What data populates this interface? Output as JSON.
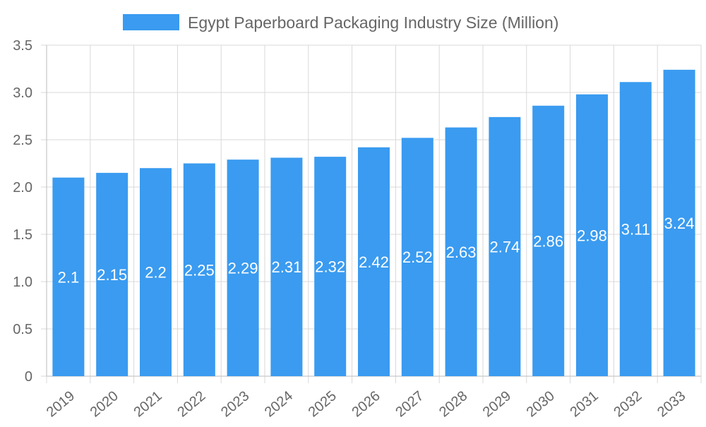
{
  "chart_data": {
    "type": "bar",
    "title": "",
    "xlabel": "",
    "ylabel": "",
    "categories": [
      "2019",
      "2020",
      "2021",
      "2022",
      "2023",
      "2024",
      "2025",
      "2026",
      "2027",
      "2028",
      "2029",
      "2030",
      "2031",
      "2032",
      "2033"
    ],
    "series": [
      {
        "name": "Egypt Paperboard Packaging Industry Size (Million)",
        "values": [
          2.1,
          2.15,
          2.2,
          2.25,
          2.29,
          2.31,
          2.32,
          2.42,
          2.52,
          2.63,
          2.74,
          2.86,
          2.98,
          3.11,
          3.24
        ]
      }
    ],
    "ylim": [
      0,
      3.5
    ],
    "yticks": [
      "0",
      "0.5",
      "1.0",
      "1.5",
      "2.0",
      "2.5",
      "3.0",
      "3.5"
    ],
    "grid": true,
    "legend": "top",
    "colors": {
      "bar": "#3a9bf0",
      "grid": "#d9d9d9",
      "text": "#666666",
      "label": "#ffffff"
    }
  }
}
